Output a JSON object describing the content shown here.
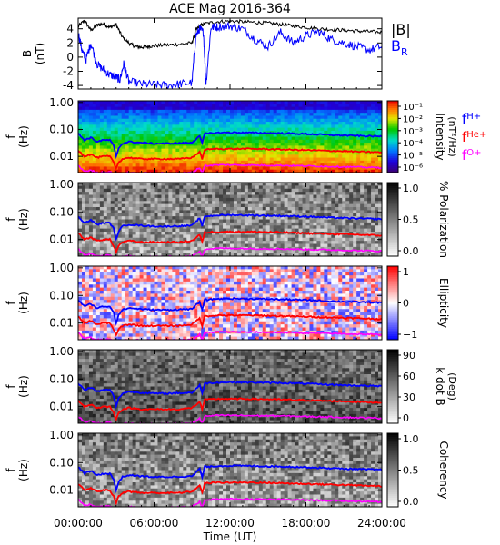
{
  "figure": {
    "title": "ACE Mag 2016-364",
    "xlabel": "Time (UT)",
    "xticks": [
      "00:00:00",
      "06:00:00",
      "12:00:00",
      "18:00:00",
      "24:00:00"
    ]
  },
  "chart_data": [
    {
      "type": "line",
      "panel": "B",
      "ylabel": "B",
      "yunit": "(nT)",
      "ylim": [
        -4.5,
        5.5
      ],
      "yticks": [
        "4",
        "2",
        "0",
        "-2",
        "-4"
      ],
      "legend": [
        "|B|",
        "B"
      ],
      "legend_sub": [
        "",
        "R"
      ],
      "series": [
        {
          "name": "|B|",
          "color": "#000000",
          "x": [
            0,
            0.5,
            1,
            1.5,
            2,
            2.5,
            3,
            3.5,
            4,
            4.5,
            5,
            5.5,
            6,
            7,
            8,
            9,
            9.3,
            9.6,
            10,
            11,
            12,
            13,
            14,
            15,
            16,
            17,
            18,
            19,
            20,
            21,
            22,
            23,
            24
          ],
          "y": [
            4.3,
            5.2,
            3.8,
            4.5,
            4.7,
            4.2,
            4.6,
            2.8,
            2.0,
            1.5,
            1.4,
            1.5,
            1.6,
            1.7,
            1.8,
            2.0,
            3.8,
            4.4,
            4.7,
            5.0,
            5.1,
            5.0,
            4.9,
            4.8,
            4.6,
            4.4,
            4.2,
            4.0,
            3.9,
            3.8,
            3.7,
            3.6,
            3.5
          ]
        },
        {
          "name": "B_R",
          "color": "#0000ff",
          "x": [
            0,
            0.3,
            0.6,
            1,
            1.5,
            2,
            2.5,
            3,
            3.3,
            3.6,
            4,
            5,
            6,
            7,
            8,
            9,
            9.3,
            9.6,
            9.9,
            10.1,
            10.5,
            11,
            12,
            13,
            14,
            15,
            16,
            17,
            18,
            19,
            20,
            21,
            22,
            23,
            24
          ],
          "y": [
            3.5,
            1.0,
            -0.5,
            2.0,
            -1.0,
            -1.8,
            -2.5,
            -2.8,
            -3.2,
            -1.0,
            -3.5,
            -3.8,
            -3.9,
            -4.0,
            -3.8,
            -3.6,
            3.0,
            4.0,
            3.5,
            -3.8,
            4.2,
            4.3,
            4.4,
            4.0,
            2.5,
            1.5,
            3.5,
            2.0,
            3.0,
            3.6,
            2.5,
            2.0,
            1.5,
            1.0,
            1.5
          ]
        }
      ]
    },
    {
      "type": "heatmap",
      "panel": "intensity",
      "ylabel": "f",
      "yunit": "(Hz)",
      "yscale": "log",
      "yticks": [
        "1.00",
        "0.10",
        "0.01"
      ],
      "colorbar_label": "Intensity",
      "colorbar_unit": "(nT²/Hz)",
      "colorbar_scale": "rainbow",
      "colorbar_ticks": [
        "10⁻¹",
        "10⁻²",
        "10⁻³",
        "10⁻⁴",
        "10⁻⁵",
        "10⁻⁶"
      ],
      "legend": [
        "f",
        "f",
        "f"
      ],
      "legend_sub": [
        "H+",
        "He+",
        "O+"
      ]
    },
    {
      "type": "heatmap",
      "panel": "polarization",
      "ylabel": "f",
      "yunit": "(Hz)",
      "yscale": "log",
      "yticks": [
        "1.00",
        "0.10",
        "0.01"
      ],
      "colorbar_label": "% Polarization",
      "colorbar_scale": "gray",
      "colorbar_ticks": [
        "1.0",
        "0.5",
        "0.0"
      ]
    },
    {
      "type": "heatmap",
      "panel": "ellipticity",
      "ylabel": "f",
      "yunit": "(Hz)",
      "yscale": "log",
      "yticks": [
        "1.00",
        "0.10",
        "0.01"
      ],
      "colorbar_label": "Ellipticity",
      "colorbar_scale": "bwr",
      "colorbar_ticks": [
        "1",
        "0",
        "−1"
      ]
    },
    {
      "type": "heatmap",
      "panel": "kdotb",
      "ylabel": "f",
      "yunit": "(Hz)",
      "yscale": "log",
      "yticks": [
        "1.00",
        "0.10",
        "0.01"
      ],
      "colorbar_label": "k dot B",
      "colorbar_unit": "(Deg)",
      "colorbar_scale": "gray",
      "colorbar_ticks": [
        "90",
        "60",
        "30",
        "0"
      ]
    },
    {
      "type": "heatmap",
      "panel": "coherency",
      "ylabel": "f",
      "yunit": "(Hz)",
      "yscale": "log",
      "yticks": [
        "1.00",
        "0.10",
        "0.01"
      ],
      "colorbar_label": "Coherency",
      "colorbar_scale": "gray",
      "colorbar_ticks": [
        "1.0",
        "0.5",
        "0.0"
      ]
    }
  ],
  "gyrofrequency_lines": {
    "time_hours": [
      0,
      0.5,
      1,
      1.5,
      2,
      2.5,
      2.8,
      3.0,
      3.2,
      3.5,
      4,
      5,
      6,
      7,
      8,
      9,
      9.6,
      9.8,
      10,
      10.2,
      11,
      12,
      14,
      16,
      18,
      20,
      22,
      24
    ],
    "f_H+": [
      0.07,
      0.04,
      0.05,
      0.035,
      0.04,
      0.04,
      0.025,
      0.01,
      0.02,
      0.03,
      0.035,
      0.032,
      0.03,
      0.03,
      0.031,
      0.032,
      0.06,
      0.03,
      0.07,
      0.07,
      0.075,
      0.077,
      0.075,
      0.072,
      0.068,
      0.062,
      0.058,
      0.055
    ],
    "f_He+": [
      0.017,
      0.01,
      0.012,
      0.009,
      0.01,
      0.01,
      0.006,
      0.0035,
      0.006,
      0.008,
      0.009,
      0.008,
      0.008,
      0.008,
      0.008,
      0.009,
      0.015,
      0.008,
      0.018,
      0.018,
      0.019,
      0.019,
      0.019,
      0.018,
      0.017,
      0.016,
      0.015,
      0.014
    ],
    "f_O+": [
      0.0045,
      0.0028,
      0.003,
      0.0025,
      0.0026,
      0.0027,
      0.0022,
      0.0015,
      0.002,
      0.0024,
      0.0025,
      0.0024,
      0.0024,
      0.0024,
      0.0024,
      0.0025,
      0.0038,
      0.0024,
      0.0045,
      0.0045,
      0.0048,
      0.0048,
      0.0047,
      0.0046,
      0.0044,
      0.0042,
      0.004,
      0.0038
    ],
    "colors": {
      "f_H+": "#0000ff",
      "f_He+": "#ff0000",
      "f_O+": "#ff00ff"
    }
  }
}
